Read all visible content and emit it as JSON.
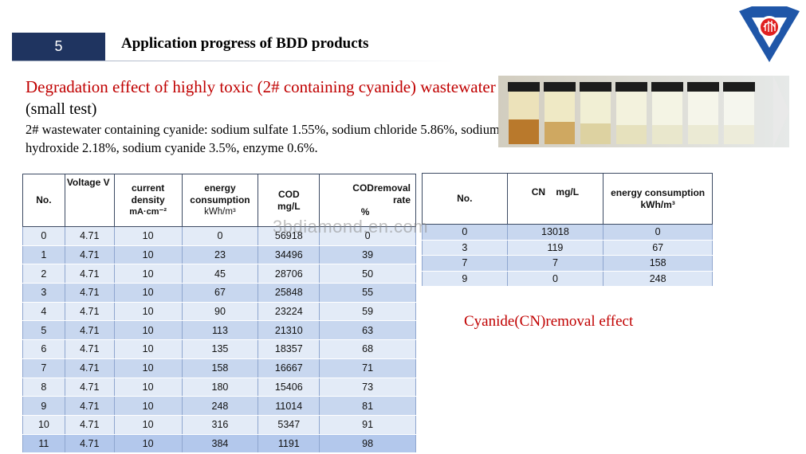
{
  "header": {
    "section_number": "5",
    "title": "Application progress of BDD products"
  },
  "intro": {
    "heading_red": "Degradation effect of highly toxic (2# containing cyanide) wastewater",
    "heading_black": " (small test)",
    "description": "2# wastewater containing cyanide: sodium sulfate 1.55%, sodium chloride 5.86%, sodium hydroxide 2.18%, sodium cyanide 3.5%, enzyme 0.6%."
  },
  "watermark": "3bdiamond.en.com",
  "table_cod": {
    "headers": {
      "no": "No.",
      "voltage": "Voltage V",
      "current_density": "current density",
      "current_density_unit": "mA·cm⁻²",
      "energy": "energy consumption",
      "energy_unit": "kWh/m³",
      "cod": "COD",
      "cod_unit": "mg/L",
      "removal": "CODremoval",
      "removal_sub": "rate",
      "removal_unit": "%"
    },
    "rows": [
      [
        "0",
        "4.71",
        "10",
        "0",
        "56918",
        "0"
      ],
      [
        "1",
        "4.71",
        "10",
        "23",
        "34496",
        "39"
      ],
      [
        "2",
        "4.71",
        "10",
        "45",
        "28706",
        "50"
      ],
      [
        "3",
        "4.71",
        "10",
        "67",
        "25848",
        "55"
      ],
      [
        "4",
        "4.71",
        "10",
        "90",
        "23224",
        "59"
      ],
      [
        "5",
        "4.71",
        "10",
        "113",
        "21310",
        "63"
      ],
      [
        "6",
        "4.71",
        "10",
        "135",
        "18357",
        "68"
      ],
      [
        "7",
        "4.71",
        "10",
        "158",
        "16667",
        "71"
      ],
      [
        "8",
        "4.71",
        "10",
        "180",
        "15406",
        "73"
      ],
      [
        "9",
        "4.71",
        "10",
        "248",
        "11014",
        "81"
      ],
      [
        "10",
        "4.71",
        "10",
        "316",
        "5347",
        "91"
      ],
      [
        "11",
        "4.71",
        "10",
        "384",
        "1191",
        "98"
      ]
    ]
  },
  "table_cn": {
    "headers": {
      "no": "No.",
      "cn": "CN    mg/L",
      "energy": "energy consumption",
      "energy_unit": "kWh/m³"
    },
    "rows": [
      [
        "0",
        "13018",
        "0"
      ],
      [
        "3",
        "119",
        "67"
      ],
      [
        "7",
        "7",
        "158"
      ],
      [
        "9",
        "0",
        "248"
      ]
    ]
  },
  "caption": "Cyanide(CN)removal effect",
  "colors": {
    "accent_red": "#c00000",
    "navy": "#1f3460",
    "logo_blue": "#1f56a8",
    "logo_red": "#e02020"
  }
}
